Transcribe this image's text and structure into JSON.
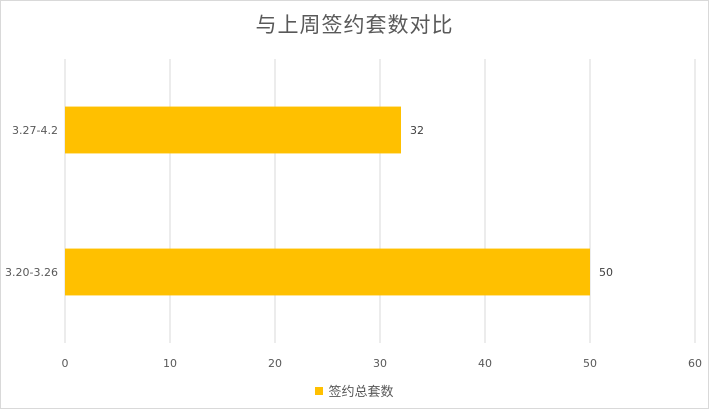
{
  "chart_data": {
    "type": "bar",
    "orientation": "horizontal",
    "title": "与上周签约套数对比",
    "categories": [
      "3.27-4.2",
      "3.20-3.26"
    ],
    "series": [
      {
        "name": "签约总套数",
        "values": [
          32,
          50
        ],
        "color": "#FFC000"
      }
    ],
    "data_labels": [
      "32",
      "50"
    ],
    "xlim": [
      0,
      60
    ],
    "xticks": [
      0,
      10,
      20,
      30,
      40,
      50,
      60
    ],
    "grid": true,
    "legend_position": "bottom"
  }
}
